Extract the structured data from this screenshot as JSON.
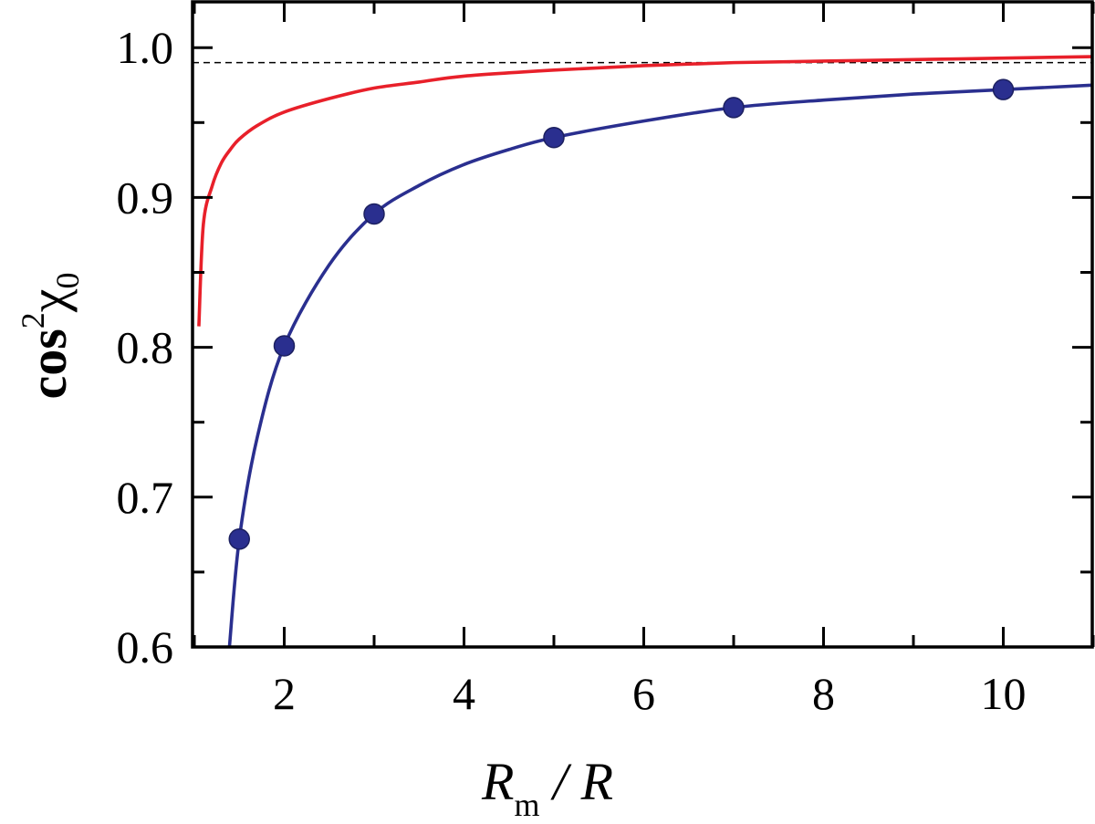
{
  "chart_data": {
    "type": "line",
    "xlabel": {
      "main": "R",
      "sub": "m",
      "tail": " / R"
    },
    "ylabel": {
      "main": "cos",
      "sup": "2",
      "greek": "χ",
      "sub": "0"
    },
    "xlim": [
      0.9,
      11
    ],
    "ylim": [
      0.6,
      1.03
    ],
    "x_ticks": [
      2,
      4,
      6,
      8,
      10
    ],
    "x_tick_labels": [
      "2",
      "4",
      "6",
      "8",
      "10"
    ],
    "y_ticks": [
      0.6,
      0.7,
      0.8,
      0.9,
      1.0
    ],
    "y_tick_labels": [
      "0.6",
      "0.7",
      "0.8",
      "0.9",
      "1.0"
    ],
    "reference_line": {
      "y": 0.99,
      "style": "dashed",
      "color": "#000000"
    },
    "series": [
      {
        "color": "#e8202a",
        "style": "line",
        "points": [
          [
            1.05,
            0.814
          ],
          [
            1.1,
            0.882
          ],
          [
            1.2,
            0.908
          ],
          [
            1.3,
            0.923
          ],
          [
            1.4,
            0.932
          ],
          [
            1.5,
            0.939
          ],
          [
            1.7,
            0.948
          ],
          [
            2,
            0.957
          ],
          [
            2.5,
            0.966
          ],
          [
            3,
            0.973
          ],
          [
            3.5,
            0.977
          ],
          [
            4,
            0.981
          ],
          [
            5,
            0.985
          ],
          [
            6,
            0.988
          ],
          [
            7,
            0.99
          ],
          [
            8,
            0.991
          ],
          [
            9,
            0.992
          ],
          [
            10,
            0.993
          ],
          [
            11,
            0.994
          ]
        ]
      },
      {
        "color": "#2a2f8f",
        "style": "line",
        "points": [
          [
            1.39,
            0.6
          ],
          [
            1.5,
            0.672
          ],
          [
            1.7,
            0.74
          ],
          [
            2,
            0.801
          ],
          [
            2.5,
            0.855
          ],
          [
            3,
            0.889
          ],
          [
            3.5,
            0.908
          ],
          [
            4,
            0.922
          ],
          [
            4.5,
            0.932
          ],
          [
            5,
            0.94
          ],
          [
            6,
            0.951
          ],
          [
            7,
            0.96
          ],
          [
            8,
            0.965
          ],
          [
            9,
            0.969
          ],
          [
            10,
            0.972
          ],
          [
            11,
            0.975
          ]
        ]
      },
      {
        "color": "#2a2f8f",
        "style": "markers",
        "points": [
          [
            1.5,
            0.672
          ],
          [
            2,
            0.801
          ],
          [
            3,
            0.889
          ],
          [
            5,
            0.94
          ],
          [
            7,
            0.96
          ],
          [
            10,
            0.972
          ]
        ]
      }
    ]
  }
}
